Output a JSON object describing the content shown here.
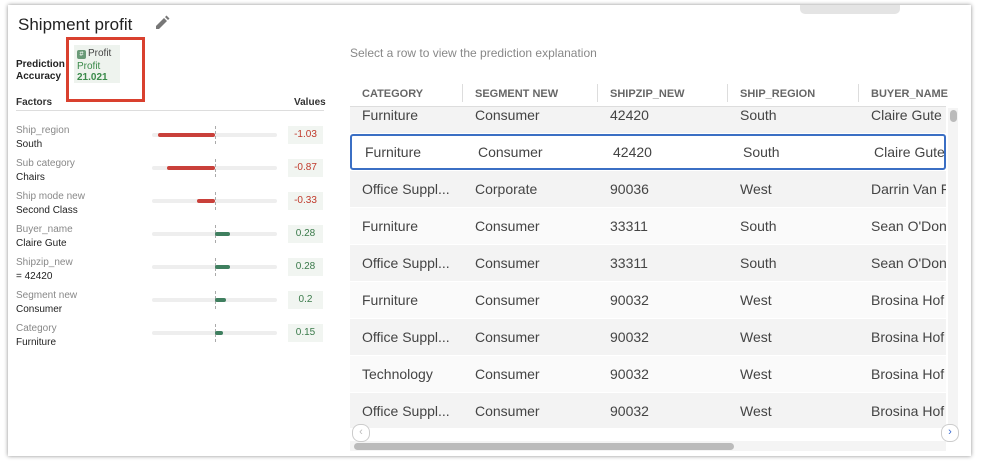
{
  "header": {
    "title": "Shipment profit"
  },
  "prediction": {
    "label": "Prediction Accuracy",
    "tag": "Profit",
    "target": "Profit",
    "value": 21.021
  },
  "factors": {
    "header": "Factors",
    "values_header": "Values",
    "items": [
      {
        "name": "Ship_region",
        "level": "South",
        "value": -1.03
      },
      {
        "name": "Sub category",
        "level": "Chairs",
        "value": -0.87
      },
      {
        "name": "Ship mode new",
        "level": "Second Class",
        "value": -0.33
      },
      {
        "name": "Buyer_name",
        "level": "Claire Gute",
        "value": 0.28
      },
      {
        "name": "Shipzip_new",
        "level": "= 42420",
        "value": 0.28
      },
      {
        "name": "Segment new",
        "level": "Consumer",
        "value": 0.2
      },
      {
        "name": "Category",
        "level": "Furniture",
        "value": 0.15
      }
    ]
  },
  "table": {
    "hint": "Select a row to view the prediction explanation",
    "columns": [
      "CATEGORY",
      "SEGMENT NEW",
      "SHIPZIP_NEW",
      "SHIP_REGION",
      "BUYER_NAME"
    ],
    "selected_row": 1,
    "rows": [
      [
        "Furniture",
        "Consumer",
        "42420",
        "South",
        "Claire Gute"
      ],
      [
        "Furniture",
        "Consumer",
        "42420",
        "South",
        "Claire Gute"
      ],
      [
        "Office Suppl...",
        "Corporate",
        "90036",
        "West",
        "Darrin Van F"
      ],
      [
        "Furniture",
        "Consumer",
        "33311",
        "South",
        "Sean O'Don"
      ],
      [
        "Office Suppl...",
        "Consumer",
        "33311",
        "South",
        "Sean O'Don"
      ],
      [
        "Furniture",
        "Consumer",
        "90032",
        "West",
        "Brosina Hof"
      ],
      [
        "Office Suppl...",
        "Consumer",
        "90032",
        "West",
        "Brosina Hof"
      ],
      [
        "Technology",
        "Consumer",
        "90032",
        "West",
        "Brosina Hof"
      ],
      [
        "Office Suppl...",
        "Consumer",
        "90032",
        "West",
        "Brosina Hof"
      ]
    ]
  }
}
